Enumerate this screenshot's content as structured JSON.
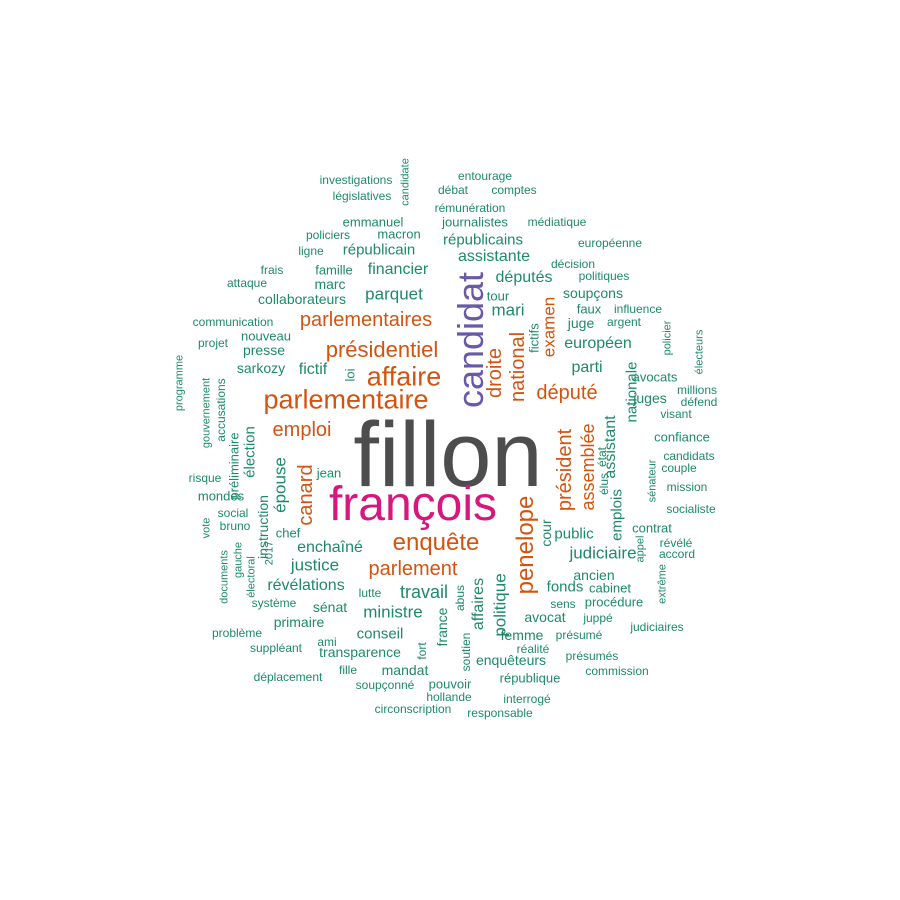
{
  "palette": {
    "gray": "#4d4d4d",
    "magenta": "#d6177d",
    "purple": "#6a59a8",
    "orange": "#d35410",
    "green": "#1e8a6a"
  },
  "words": [
    {
      "text": "fillon",
      "color": "gray"
    },
    {
      "text": "françois",
      "color": "magenta"
    },
    {
      "text": "candidat",
      "color": "purple"
    },
    {
      "text": "parlementaire",
      "color": "orange"
    },
    {
      "text": "affaire",
      "color": "orange"
    },
    {
      "text": "présidentiel",
      "color": "orange"
    },
    {
      "text": "parlementaires",
      "color": "orange"
    },
    {
      "text": "enquête",
      "color": "orange"
    },
    {
      "text": "penelope",
      "color": "orange"
    },
    {
      "text": "parlement",
      "color": "orange"
    },
    {
      "text": "député",
      "color": "orange"
    },
    {
      "text": "droite",
      "color": "orange"
    },
    {
      "text": "national",
      "color": "orange"
    },
    {
      "text": "emploi",
      "color": "orange"
    },
    {
      "text": "canard",
      "color": "orange"
    },
    {
      "text": "président",
      "color": "orange"
    },
    {
      "text": "assemblée",
      "color": "orange"
    },
    {
      "text": "examen",
      "color": "orange"
    },
    {
      "text": "parquet",
      "color": "green"
    },
    {
      "text": "mari",
      "color": "green"
    },
    {
      "text": "députés",
      "color": "green"
    },
    {
      "text": "financier",
      "color": "green"
    },
    {
      "text": "assistante",
      "color": "green"
    },
    {
      "text": "républicains",
      "color": "green"
    },
    {
      "text": "républicain",
      "color": "green"
    },
    {
      "text": "épouse",
      "color": "green"
    },
    {
      "text": "enchaîné",
      "color": "green"
    },
    {
      "text": "justice",
      "color": "green"
    },
    {
      "text": "révélations",
      "color": "green"
    },
    {
      "text": "ministre",
      "color": "green"
    },
    {
      "text": "travail",
      "color": "green"
    },
    {
      "text": "judiciaire",
      "color": "green"
    },
    {
      "text": "politique",
      "color": "green"
    },
    {
      "text": "européen",
      "color": "green"
    },
    {
      "text": "parti",
      "color": "green"
    },
    {
      "text": "fictif",
      "color": "green"
    },
    {
      "text": "collaborateurs",
      "color": "green"
    },
    {
      "text": "presse",
      "color": "green"
    },
    {
      "text": "sarkozy",
      "color": "green"
    },
    {
      "text": "conseil",
      "color": "green"
    },
    {
      "text": "sénat",
      "color": "green"
    },
    {
      "text": "primaire",
      "color": "green"
    },
    {
      "text": "transparence",
      "color": "green"
    },
    {
      "text": "femme",
      "color": "green"
    },
    {
      "text": "avocat",
      "color": "green"
    },
    {
      "text": "fonds",
      "color": "green"
    },
    {
      "text": "ancien",
      "color": "green"
    },
    {
      "text": "public",
      "color": "green"
    },
    {
      "text": "emplois",
      "color": "green"
    },
    {
      "text": "assistant",
      "color": "green"
    },
    {
      "text": "nationale",
      "color": "green"
    },
    {
      "text": "juge",
      "color": "green"
    },
    {
      "text": "juges",
      "color": "green"
    },
    {
      "text": "avocats",
      "color": "green"
    },
    {
      "text": "soupçons",
      "color": "green"
    },
    {
      "text": "affaires",
      "color": "green"
    },
    {
      "text": "france",
      "color": "green"
    },
    {
      "text": "enquêteurs",
      "color": "green"
    },
    {
      "text": "mandat",
      "color": "green"
    },
    {
      "text": "cour",
      "color": "green"
    },
    {
      "text": "élection",
      "color": "green"
    },
    {
      "text": "marc",
      "color": "green"
    },
    {
      "text": "famille",
      "color": "green"
    },
    {
      "text": "tour",
      "color": "green"
    },
    {
      "text": "fictifs",
      "color": "green"
    },
    {
      "text": "loi",
      "color": "green"
    },
    {
      "text": "nouveau",
      "color": "green"
    },
    {
      "text": "chef",
      "color": "green"
    },
    {
      "text": "jean",
      "color": "green"
    },
    {
      "text": "mondes",
      "color": "green"
    },
    {
      "text": "social",
      "color": "green"
    },
    {
      "text": "bruno",
      "color": "green"
    },
    {
      "text": "risque",
      "color": "green"
    },
    {
      "text": "instruction",
      "color": "green"
    },
    {
      "text": "préliminaire",
      "color": "green"
    },
    {
      "text": "accusations",
      "color": "green"
    },
    {
      "text": "gouvernement",
      "color": "green"
    },
    {
      "text": "programme",
      "color": "green"
    },
    {
      "text": "communication",
      "color": "green"
    },
    {
      "text": "projet",
      "color": "green"
    },
    {
      "text": "attaque",
      "color": "green"
    },
    {
      "text": "frais",
      "color": "green"
    },
    {
      "text": "ligne",
      "color": "green"
    },
    {
      "text": "policiers",
      "color": "green"
    },
    {
      "text": "macron",
      "color": "green"
    },
    {
      "text": "emmanuel",
      "color": "green"
    },
    {
      "text": "législatives",
      "color": "green"
    },
    {
      "text": "investigations",
      "color": "green"
    },
    {
      "text": "candidate",
      "color": "green"
    },
    {
      "text": "entourage",
      "color": "green"
    },
    {
      "text": "débat",
      "color": "green"
    },
    {
      "text": "comptes",
      "color": "green"
    },
    {
      "text": "rémunération",
      "color": "green"
    },
    {
      "text": "journalistes",
      "color": "green"
    },
    {
      "text": "médiatique",
      "color": "green"
    },
    {
      "text": "européenne",
      "color": "green"
    },
    {
      "text": "décision",
      "color": "green"
    },
    {
      "text": "politiques",
      "color": "green"
    },
    {
      "text": "faux",
      "color": "green"
    },
    {
      "text": "influence",
      "color": "green"
    },
    {
      "text": "argent",
      "color": "green"
    },
    {
      "text": "policier",
      "color": "green"
    },
    {
      "text": "électeurs",
      "color": "green"
    },
    {
      "text": "millions",
      "color": "green"
    },
    {
      "text": "défend",
      "color": "green"
    },
    {
      "text": "visant",
      "color": "green"
    },
    {
      "text": "confiance",
      "color": "green"
    },
    {
      "text": "candidats",
      "color": "green"
    },
    {
      "text": "couple",
      "color": "green"
    },
    {
      "text": "mission",
      "color": "green"
    },
    {
      "text": "sénateur",
      "color": "green"
    },
    {
      "text": "état",
      "color": "green"
    },
    {
      "text": "élus",
      "color": "green"
    },
    {
      "text": "socialiste",
      "color": "green"
    },
    {
      "text": "contrat",
      "color": "green"
    },
    {
      "text": "révélé",
      "color": "green"
    },
    {
      "text": "accord",
      "color": "green"
    },
    {
      "text": "appel",
      "color": "green"
    },
    {
      "text": "extrême",
      "color": "green"
    },
    {
      "text": "cabinet",
      "color": "green"
    },
    {
      "text": "procédure",
      "color": "green"
    },
    {
      "text": "sens",
      "color": "green"
    },
    {
      "text": "juppé",
      "color": "green"
    },
    {
      "text": "judiciaires",
      "color": "green"
    },
    {
      "text": "présumé",
      "color": "green"
    },
    {
      "text": "présumés",
      "color": "green"
    },
    {
      "text": "commission",
      "color": "green"
    },
    {
      "text": "réalité",
      "color": "green"
    },
    {
      "text": "république",
      "color": "green"
    },
    {
      "text": "interrogé",
      "color": "green"
    },
    {
      "text": "responsable",
      "color": "green"
    },
    {
      "text": "hollande",
      "color": "green"
    },
    {
      "text": "circonscription",
      "color": "green"
    },
    {
      "text": "pouvoir",
      "color": "green"
    },
    {
      "text": "soupçonné",
      "color": "green"
    },
    {
      "text": "fille",
      "color": "green"
    },
    {
      "text": "ami",
      "color": "green"
    },
    {
      "text": "suppléant",
      "color": "green"
    },
    {
      "text": "problème",
      "color": "green"
    },
    {
      "text": "déplacement",
      "color": "green"
    },
    {
      "text": "système",
      "color": "green"
    },
    {
      "text": "lutte",
      "color": "green"
    },
    {
      "text": "abus",
      "color": "green"
    },
    {
      "text": "fort",
      "color": "green"
    },
    {
      "text": "soutien",
      "color": "green"
    },
    {
      "text": "documents",
      "color": "green"
    },
    {
      "text": "gauche",
      "color": "green"
    },
    {
      "text": "électoral",
      "color": "green"
    },
    {
      "text": "2017",
      "color": "green"
    },
    {
      "text": "vote",
      "color": "green"
    }
  ]
}
